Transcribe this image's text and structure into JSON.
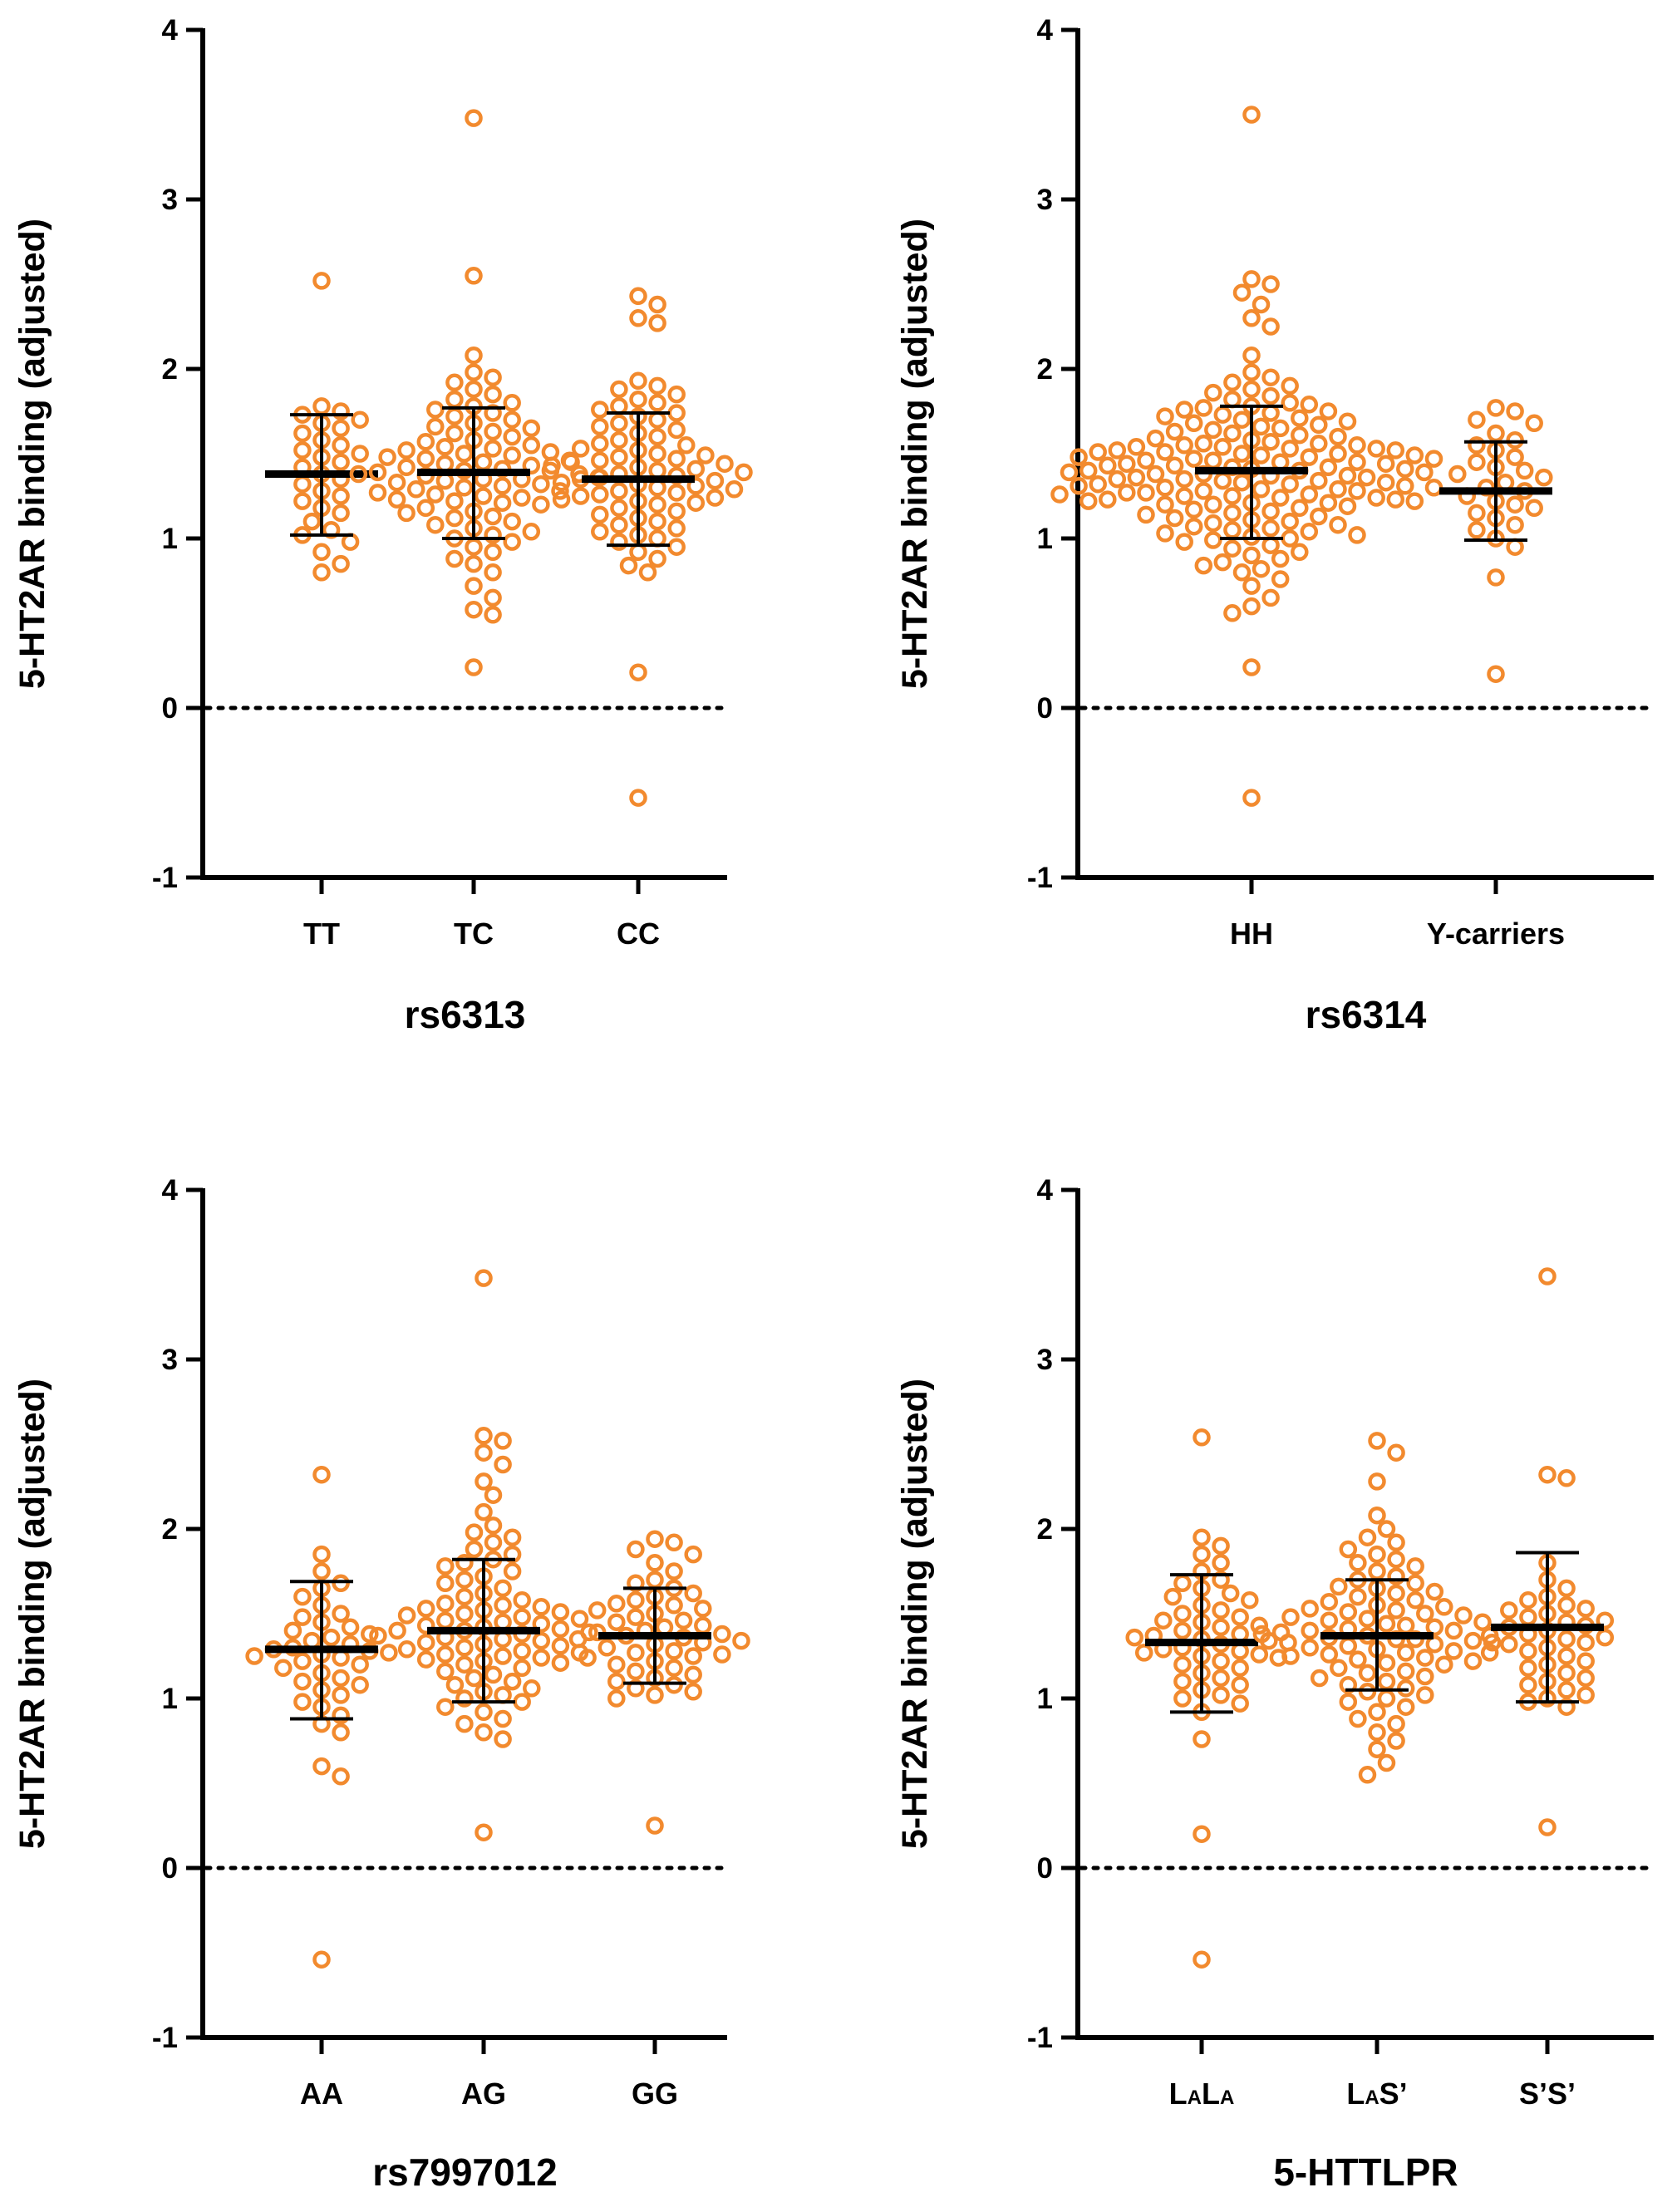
{
  "colors": {
    "points": "#f28a2e",
    "axes": "#000000"
  },
  "chart_data": [
    {
      "type": "scatter",
      "title": "",
      "xlabel": "rs6313",
      "ylabel": "5-HT2AR binding (adjusted)",
      "ylim": [
        -1,
        4
      ],
      "yticks": [
        "-1",
        "0",
        "1",
        "2",
        "3",
        "4"
      ],
      "reference_line": 0,
      "groups": [
        {
          "label": "TT",
          "mean": 1.38,
          "sd_low": 1.02,
          "sd_high": 1.73,
          "values": [
            2.52,
            1.78,
            1.75,
            1.73,
            1.7,
            1.68,
            1.65,
            1.62,
            1.58,
            1.55,
            1.52,
            1.5,
            1.48,
            1.45,
            1.42,
            1.38,
            1.35,
            1.32,
            1.28,
            1.25,
            1.22,
            1.18,
            1.15,
            1.1,
            1.05,
            1.02,
            0.98,
            0.92,
            0.85,
            0.8
          ]
        },
        {
          "label": "TC",
          "mean": 1.39,
          "sd_low": 1.0,
          "sd_high": 1.77,
          "values": [
            3.48,
            2.55,
            2.08,
            1.98,
            1.95,
            1.92,
            1.88,
            1.85,
            1.82,
            1.8,
            1.78,
            1.76,
            1.74,
            1.72,
            1.7,
            1.68,
            1.66,
            1.65,
            1.63,
            1.62,
            1.6,
            1.58,
            1.57,
            1.55,
            1.54,
            1.53,
            1.52,
            1.51,
            1.5,
            1.49,
            1.48,
            1.47,
            1.46,
            1.45,
            1.44,
            1.43,
            1.42,
            1.41,
            1.4,
            1.4,
            1.39,
            1.38,
            1.38,
            1.37,
            1.36,
            1.35,
            1.35,
            1.34,
            1.33,
            1.32,
            1.31,
            1.3,
            1.29,
            1.28,
            1.27,
            1.26,
            1.25,
            1.24,
            1.23,
            1.22,
            1.21,
            1.2,
            1.18,
            1.16,
            1.15,
            1.13,
            1.12,
            1.1,
            1.08,
            1.06,
            1.04,
            1.02,
            1.0,
            0.98,
            0.95,
            0.92,
            0.88,
            0.85,
            0.8,
            0.72,
            0.65,
            0.58,
            0.55,
            0.24
          ]
        },
        {
          "label": "CC",
          "mean": 1.35,
          "sd_low": 0.96,
          "sd_high": 1.74,
          "values": [
            2.43,
            2.38,
            2.3,
            2.27,
            1.93,
            1.9,
            1.88,
            1.85,
            1.82,
            1.8,
            1.78,
            1.76,
            1.74,
            1.72,
            1.7,
            1.68,
            1.66,
            1.64,
            1.62,
            1.6,
            1.58,
            1.56,
            1.55,
            1.53,
            1.52,
            1.5,
            1.49,
            1.48,
            1.47,
            1.46,
            1.45,
            1.44,
            1.43,
            1.42,
            1.41,
            1.4,
            1.39,
            1.38,
            1.37,
            1.36,
            1.35,
            1.34,
            1.33,
            1.32,
            1.31,
            1.3,
            1.29,
            1.28,
            1.27,
            1.26,
            1.25,
            1.24,
            1.23,
            1.22,
            1.21,
            1.2,
            1.18,
            1.16,
            1.14,
            1.12,
            1.1,
            1.08,
            1.06,
            1.04,
            1.02,
            1.0,
            0.98,
            0.95,
            0.92,
            0.88,
            0.84,
            0.8,
            0.21,
            -0.53
          ]
        }
      ]
    },
    {
      "type": "scatter",
      "title": "",
      "xlabel": "rs6314",
      "ylabel": "5-HT2AR binding (adjusted)",
      "ylim": [
        -1,
        4
      ],
      "yticks": [
        "-1",
        "0",
        "1",
        "2",
        "3",
        "4"
      ],
      "reference_line": 0,
      "groups": [
        {
          "label": "HH",
          "mean": 1.4,
          "sd_low": 1.0,
          "sd_high": 1.78,
          "values": [
            3.5,
            2.53,
            2.5,
            2.45,
            2.38,
            2.3,
            2.25,
            2.08,
            1.98,
            1.95,
            1.92,
            1.9,
            1.88,
            1.86,
            1.84,
            1.82,
            1.8,
            1.79,
            1.78,
            1.77,
            1.76,
            1.75,
            1.74,
            1.73,
            1.72,
            1.71,
            1.7,
            1.69,
            1.68,
            1.67,
            1.66,
            1.65,
            1.64,
            1.63,
            1.62,
            1.61,
            1.6,
            1.59,
            1.58,
            1.57,
            1.56,
            1.56,
            1.55,
            1.55,
            1.54,
            1.54,
            1.53,
            1.53,
            1.52,
            1.52,
            1.51,
            1.51,
            1.5,
            1.5,
            1.49,
            1.49,
            1.48,
            1.48,
            1.47,
            1.47,
            1.46,
            1.46,
            1.45,
            1.45,
            1.44,
            1.44,
            1.43,
            1.43,
            1.42,
            1.42,
            1.41,
            1.41,
            1.4,
            1.4,
            1.39,
            1.39,
            1.38,
            1.38,
            1.37,
            1.37,
            1.36,
            1.36,
            1.35,
            1.35,
            1.34,
            1.34,
            1.33,
            1.33,
            1.32,
            1.32,
            1.31,
            1.31,
            1.3,
            1.3,
            1.29,
            1.29,
            1.28,
            1.28,
            1.27,
            1.27,
            1.26,
            1.26,
            1.25,
            1.25,
            1.24,
            1.24,
            1.23,
            1.23,
            1.22,
            1.22,
            1.21,
            1.21,
            1.2,
            1.2,
            1.19,
            1.18,
            1.17,
            1.16,
            1.15,
            1.14,
            1.13,
            1.12,
            1.11,
            1.1,
            1.09,
            1.08,
            1.07,
            1.06,
            1.05,
            1.04,
            1.03,
            1.02,
            1.01,
            1.0,
            0.99,
            0.98,
            0.96,
            0.94,
            0.92,
            0.9,
            0.88,
            0.86,
            0.84,
            0.82,
            0.8,
            0.76,
            0.72,
            0.65,
            0.6,
            0.56,
            0.24,
            -0.53
          ]
        },
        {
          "label": "Y-carriers",
          "mean": 1.28,
          "sd_low": 0.99,
          "sd_high": 1.57,
          "values": [
            1.77,
            1.75,
            1.7,
            1.68,
            1.62,
            1.58,
            1.55,
            1.52,
            1.48,
            1.45,
            1.42,
            1.4,
            1.38,
            1.36,
            1.33,
            1.3,
            1.28,
            1.25,
            1.22,
            1.2,
            1.18,
            1.15,
            1.12,
            1.08,
            1.05,
            1.0,
            0.95,
            0.77,
            0.2
          ]
        }
      ]
    },
    {
      "type": "scatter",
      "title": "",
      "xlabel": "rs7997012",
      "ylabel": "5-HT2AR binding (adjusted)",
      "ylim": [
        -1,
        4
      ],
      "yticks": [
        "-1",
        "0",
        "1",
        "2",
        "3",
        "4"
      ],
      "reference_line": 0,
      "groups": [
        {
          "label": "AA",
          "mean": 1.29,
          "sd_low": 0.88,
          "sd_high": 1.69,
          "values": [
            2.32,
            1.85,
            1.75,
            1.68,
            1.65,
            1.6,
            1.55,
            1.5,
            1.48,
            1.45,
            1.42,
            1.4,
            1.38,
            1.36,
            1.34,
            1.32,
            1.3,
            1.29,
            1.28,
            1.27,
            1.26,
            1.25,
            1.24,
            1.22,
            1.2,
            1.18,
            1.15,
            1.12,
            1.1,
            1.08,
            1.05,
            1.02,
            0.98,
            0.95,
            0.9,
            0.85,
            0.8,
            0.6,
            0.54,
            -0.54
          ]
        },
        {
          "label": "AG",
          "mean": 1.4,
          "sd_low": 0.98,
          "sd_high": 1.82,
          "values": [
            3.48,
            2.55,
            2.52,
            2.45,
            2.38,
            2.28,
            2.2,
            2.1,
            2.02,
            1.98,
            1.95,
            1.92,
            1.88,
            1.85,
            1.82,
            1.8,
            1.78,
            1.75,
            1.72,
            1.7,
            1.68,
            1.65,
            1.62,
            1.6,
            1.58,
            1.56,
            1.55,
            1.54,
            1.53,
            1.52,
            1.51,
            1.5,
            1.49,
            1.48,
            1.47,
            1.46,
            1.45,
            1.44,
            1.43,
            1.42,
            1.41,
            1.4,
            1.4,
            1.39,
            1.38,
            1.37,
            1.36,
            1.35,
            1.34,
            1.33,
            1.32,
            1.31,
            1.3,
            1.29,
            1.28,
            1.27,
            1.26,
            1.25,
            1.24,
            1.23,
            1.22,
            1.21,
            1.2,
            1.18,
            1.16,
            1.14,
            1.12,
            1.1,
            1.08,
            1.06,
            1.04,
            1.02,
            1.0,
            0.98,
            0.95,
            0.92,
            0.88,
            0.85,
            0.8,
            0.76,
            0.21
          ]
        },
        {
          "label": "GG",
          "mean": 1.37,
          "sd_low": 1.09,
          "sd_high": 1.65,
          "values": [
            1.94,
            1.92,
            1.88,
            1.85,
            1.8,
            1.75,
            1.7,
            1.68,
            1.65,
            1.62,
            1.6,
            1.58,
            1.56,
            1.55,
            1.53,
            1.52,
            1.5,
            1.48,
            1.46,
            1.45,
            1.43,
            1.42,
            1.4,
            1.39,
            1.38,
            1.37,
            1.36,
            1.35,
            1.34,
            1.33,
            1.32,
            1.3,
            1.28,
            1.27,
            1.26,
            1.25,
            1.24,
            1.22,
            1.2,
            1.18,
            1.16,
            1.14,
            1.12,
            1.1,
            1.08,
            1.06,
            1.04,
            1.02,
            1.0,
            0.25
          ]
        }
      ]
    },
    {
      "type": "scatter",
      "title": "",
      "xlabel": "5-HTTLPR",
      "ylabel": "5-HT2AR binding (adjusted)",
      "ylim": [
        -1,
        4
      ],
      "yticks": [
        "-1",
        "0",
        "1",
        "2",
        "3",
        "4"
      ],
      "reference_line": 0,
      "groups": [
        {
          "label": "LALA",
          "label_parts": [
            [
              "L",
              "big"
            ],
            [
              "A",
              "small"
            ],
            [
              "L",
              "big"
            ],
            [
              "A",
              "small"
            ]
          ],
          "mean": 1.33,
          "sd_low": 0.92,
          "sd_high": 1.73,
          "values": [
            2.54,
            1.95,
            1.9,
            1.85,
            1.8,
            1.75,
            1.7,
            1.68,
            1.65,
            1.62,
            1.6,
            1.58,
            1.55,
            1.52,
            1.5,
            1.48,
            1.46,
            1.45,
            1.43,
            1.42,
            1.4,
            1.38,
            1.37,
            1.36,
            1.35,
            1.34,
            1.33,
            1.32,
            1.3,
            1.29,
            1.28,
            1.27,
            1.26,
            1.25,
            1.24,
            1.22,
            1.2,
            1.18,
            1.15,
            1.12,
            1.1,
            1.08,
            1.05,
            1.02,
            1.0,
            0.97,
            0.92,
            0.76,
            0.2,
            -0.54
          ]
        },
        {
          "label": "LAS'",
          "label_parts": [
            [
              "L",
              "big"
            ],
            [
              "A",
              "small"
            ],
            [
              "S’",
              "big"
            ]
          ],
          "mean": 1.37,
          "sd_low": 1.05,
          "sd_high": 1.7,
          "values": [
            2.52,
            2.45,
            2.28,
            2.08,
            2.0,
            1.95,
            1.92,
            1.88,
            1.85,
            1.82,
            1.8,
            1.78,
            1.75,
            1.72,
            1.7,
            1.68,
            1.66,
            1.65,
            1.63,
            1.62,
            1.6,
            1.58,
            1.57,
            1.55,
            1.54,
            1.53,
            1.52,
            1.51,
            1.5,
            1.49,
            1.48,
            1.47,
            1.46,
            1.45,
            1.44,
            1.43,
            1.42,
            1.41,
            1.4,
            1.4,
            1.39,
            1.38,
            1.37,
            1.36,
            1.35,
            1.35,
            1.34,
            1.33,
            1.32,
            1.31,
            1.3,
            1.29,
            1.28,
            1.27,
            1.26,
            1.25,
            1.24,
            1.23,
            1.22,
            1.21,
            1.2,
            1.18,
            1.16,
            1.15,
            1.13,
            1.12,
            1.1,
            1.08,
            1.06,
            1.04,
            1.02,
            1.0,
            0.98,
            0.95,
            0.92,
            0.88,
            0.85,
            0.8,
            0.75,
            0.7,
            0.62,
            0.55
          ]
        },
        {
          "label": "S'S'",
          "label_parts": [
            [
              "S’S’",
              "big"
            ]
          ],
          "mean": 1.42,
          "sd_low": 0.98,
          "sd_high": 1.86,
          "values": [
            3.49,
            2.32,
            2.3,
            1.8,
            1.7,
            1.65,
            1.6,
            1.58,
            1.55,
            1.53,
            1.52,
            1.5,
            1.48,
            1.46,
            1.45,
            1.43,
            1.42,
            1.4,
            1.38,
            1.37,
            1.36,
            1.35,
            1.33,
            1.32,
            1.3,
            1.28,
            1.27,
            1.25,
            1.22,
            1.2,
            1.18,
            1.15,
            1.12,
            1.1,
            1.08,
            1.05,
            1.02,
            1.0,
            0.98,
            0.95,
            0.24
          ]
        }
      ]
    }
  ]
}
